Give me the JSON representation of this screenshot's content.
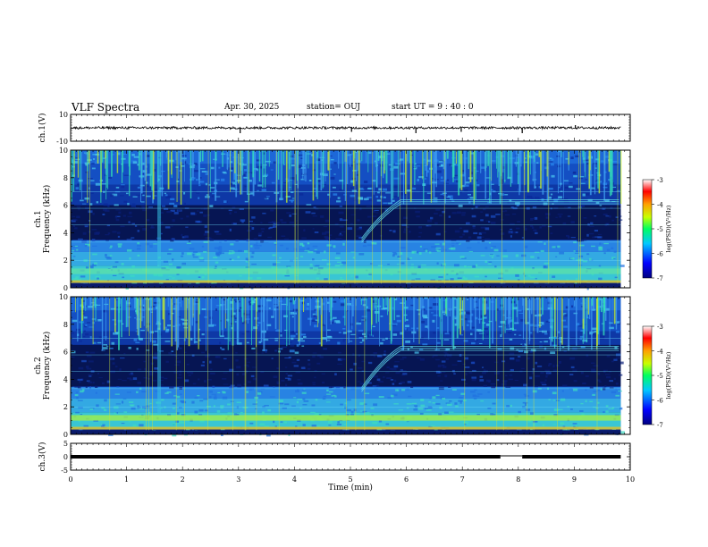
{
  "header": {
    "title": "VLF Spectra",
    "date": "Apr. 30, 2025",
    "station": "station= OUJ",
    "start": "start  UT =   9 : 40 : 0"
  },
  "chart_data": [
    {
      "type": "line",
      "panel": "ch1-waveform",
      "ylabel": "ch.1(V)",
      "ylim": [
        -10,
        10
      ],
      "yticks": [
        "10",
        "-10"
      ],
      "x_range": [
        0,
        9.83
      ],
      "baseline": 0,
      "noise_amplitude": 0.9,
      "spikes": [
        {
          "t": 3.03,
          "v": -4
        },
        {
          "t": 5.02,
          "v": -3
        },
        {
          "t": 6.17,
          "v": -4
        },
        {
          "t": 6.98,
          "v": -3
        },
        {
          "t": 8.07,
          "v": -4
        },
        {
          "t": 9.02,
          "v": 2
        }
      ]
    },
    {
      "type": "heatmap",
      "panel": "ch1-spectrogram",
      "ylabel": "ch.1\nFrequency (kHz)",
      "ylim": [
        0,
        10
      ],
      "yticks": [
        "0",
        "2",
        "4",
        "6",
        "8",
        "10"
      ],
      "colorbar_label": "log(PSD)(V²/Hz)",
      "colorbar_range": [
        -7,
        -3
      ],
      "colorbar_ticks": [
        "-3",
        "-4",
        "-5",
        "-6",
        "-7"
      ],
      "dark_band_khz": [
        3.5,
        6.0
      ],
      "strong_band_khz": [
        0.3,
        3.4
      ],
      "rising_tone": {
        "start_min": 5.2,
        "start_khz": 3.6,
        "end_min": 5.9,
        "end_khz": 6.4,
        "continue_to_min": 9.8
      }
    },
    {
      "type": "heatmap",
      "panel": "ch2-spectrogram",
      "ylabel": "ch.2\nFrequency (kHz)",
      "ylim": [
        0,
        10
      ],
      "yticks": [
        "0",
        "2",
        "4",
        "6",
        "8",
        "10"
      ],
      "colorbar_label": "log(PSD)(V²/Hz)",
      "colorbar_range": [
        -7,
        -3
      ],
      "colorbar_ticks": [
        "-3",
        "-4",
        "-5",
        "-6",
        "-7"
      ],
      "dark_band_khz": [
        3.5,
        6.5
      ],
      "strong_band_khz": [
        0.3,
        3.4
      ],
      "rising_tone": {
        "start_min": 5.2,
        "start_khz": 3.4,
        "end_min": 5.9,
        "end_khz": 6.4,
        "continue_to_min": 9.8
      }
    },
    {
      "type": "line",
      "panel": "ch3-waveform",
      "ylabel": "ch.3(V)",
      "ylim": [
        -5,
        5
      ],
      "yticks": [
        "5",
        "0",
        "-5"
      ],
      "x_range": [
        0,
        9.83
      ],
      "baseline": 0,
      "gap": [
        7.68,
        8.07
      ]
    }
  ],
  "xaxis": {
    "label": "Time (min)",
    "range": [
      0,
      10
    ],
    "ticks": [
      "0",
      "1",
      "2",
      "3",
      "4",
      "5",
      "6",
      "7",
      "8",
      "9",
      "10"
    ]
  },
  "colors": {
    "spectro_low": "#0a1a5a",
    "spectro_mid": "#1e5bd8",
    "spectro_high": "#34e0b8",
    "spectro_peak": "#c8f028"
  }
}
